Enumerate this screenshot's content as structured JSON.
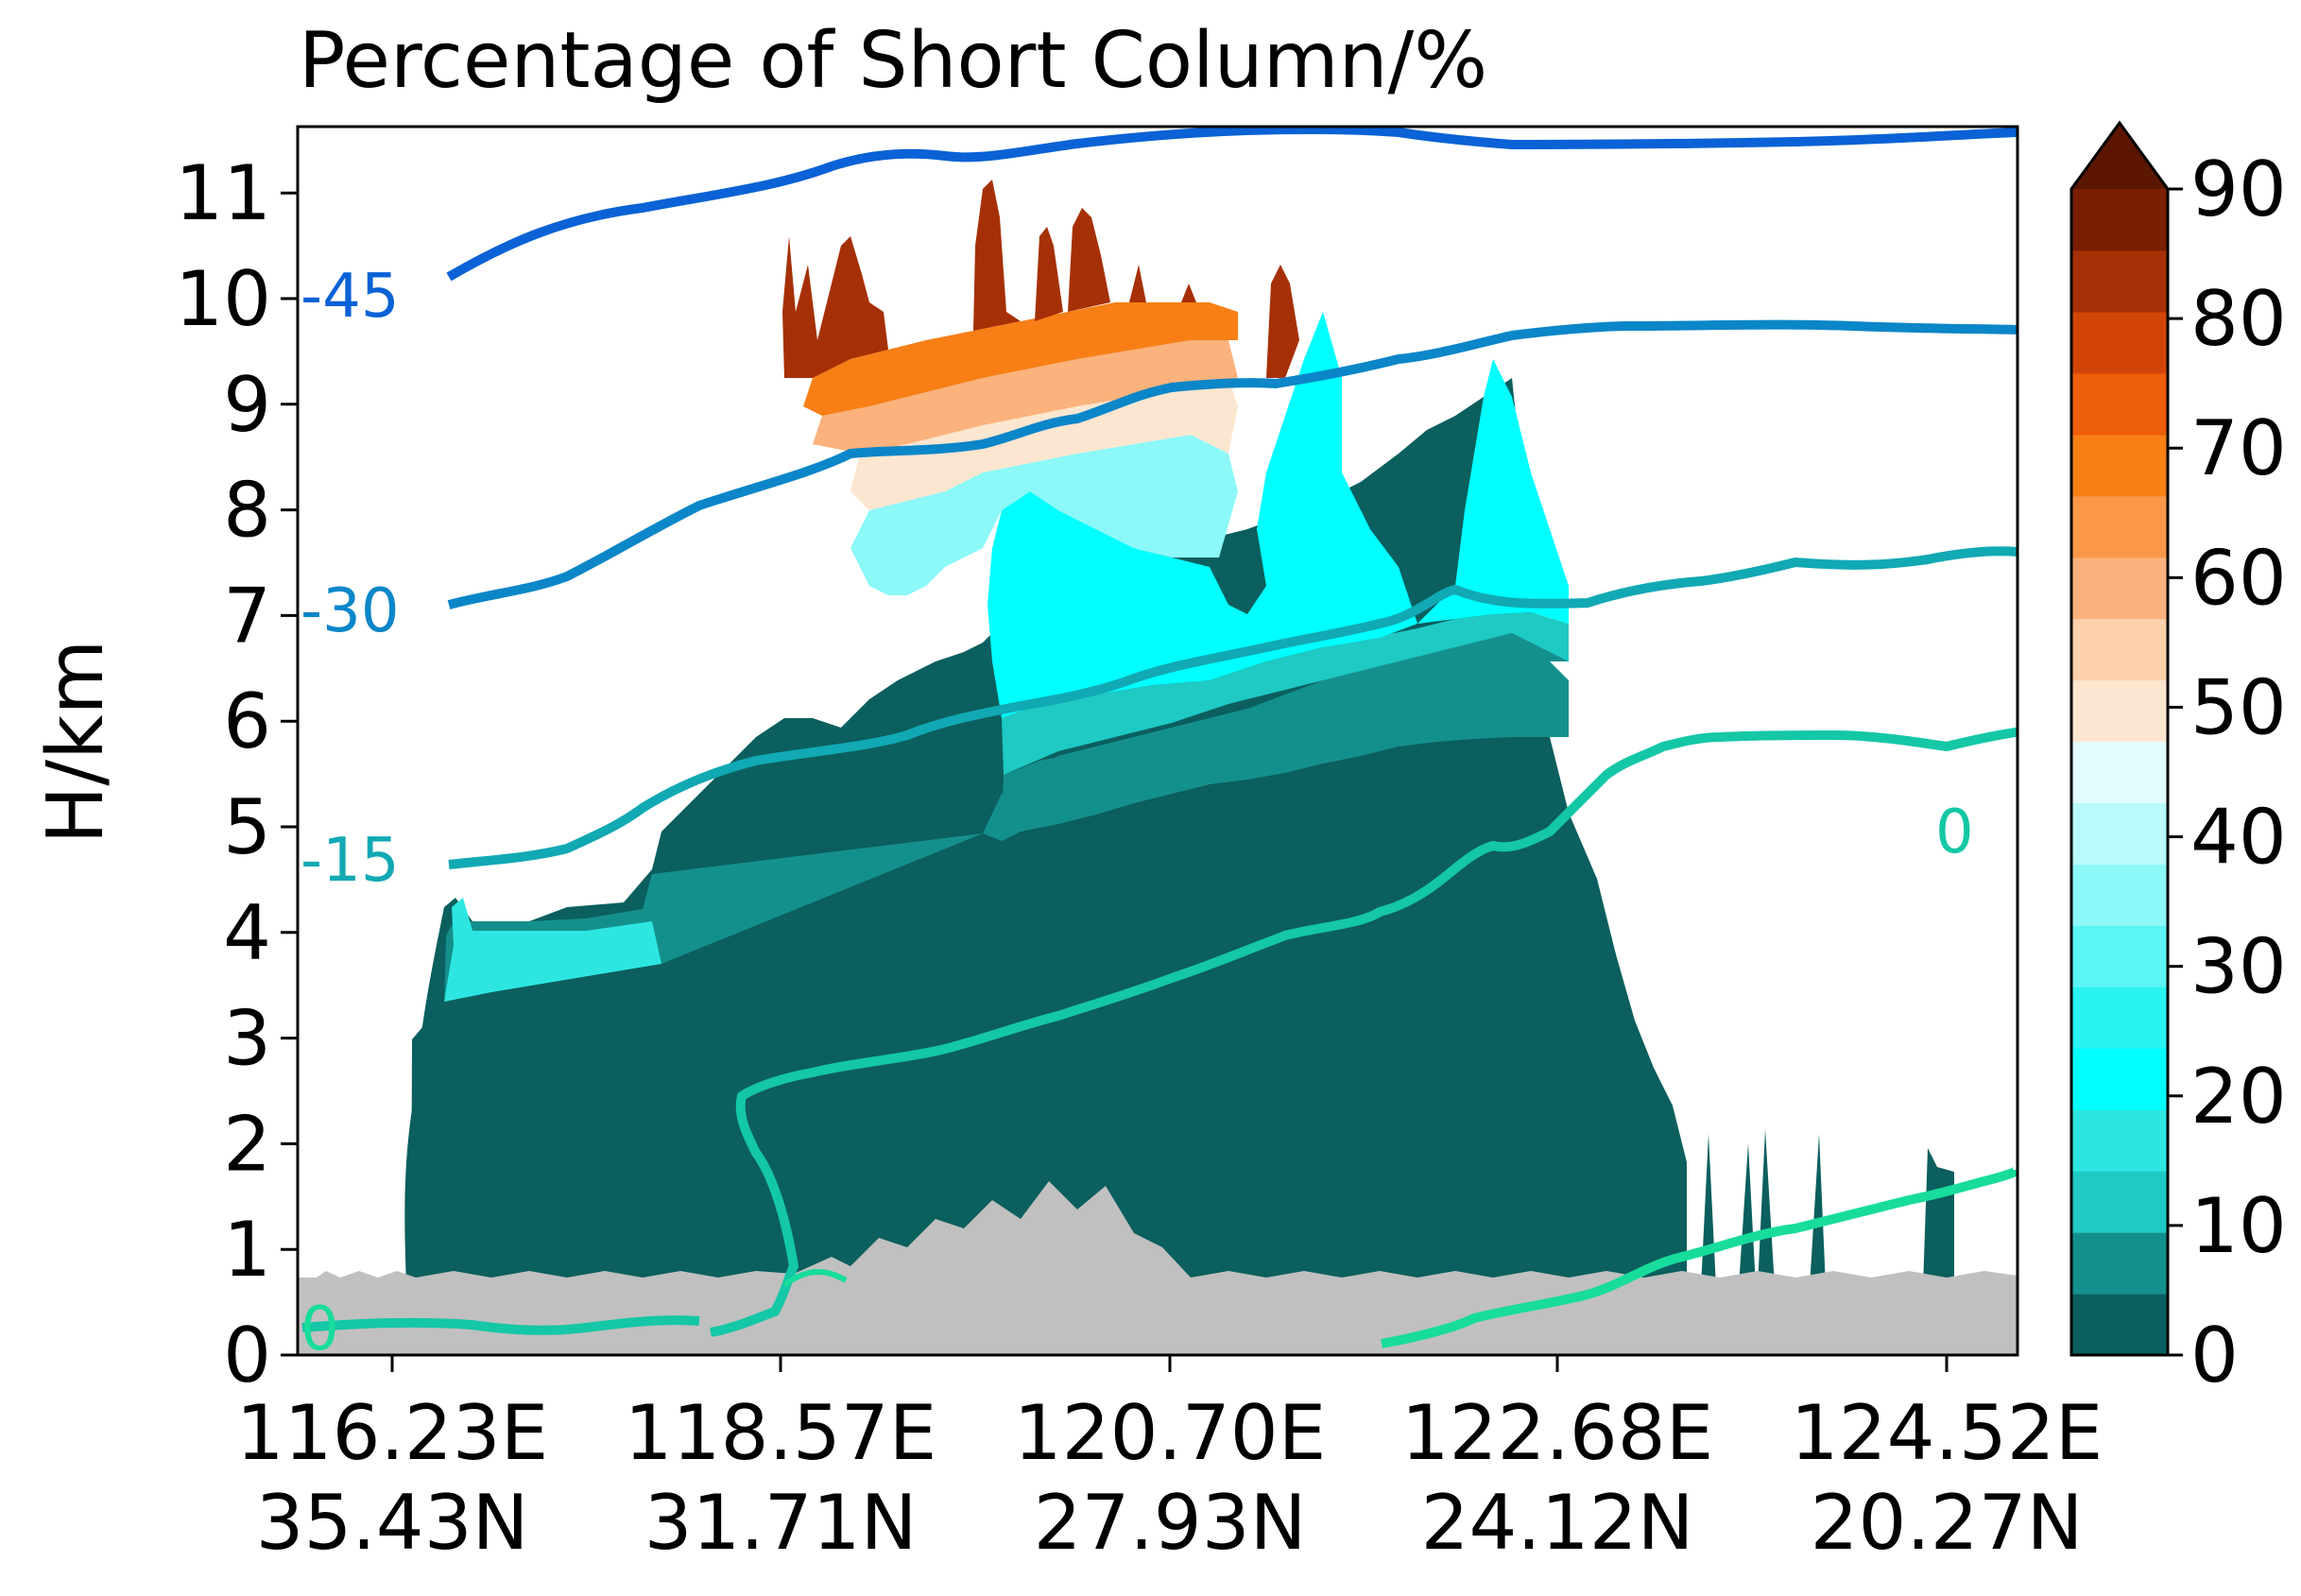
{
  "chart_data": {
    "type": "heatmap",
    "title": "Percentage of Short Column/%",
    "xlabel": "",
    "ylabel": "H/km",
    "ylim": [
      0,
      11.5
    ],
    "yticks": [
      0,
      1,
      2,
      3,
      4,
      5,
      6,
      7,
      8,
      9,
      10,
      11
    ],
    "xticks": [
      {
        "lon": "116.23E",
        "lat": "35.43N"
      },
      {
        "lon": "118.57E",
        "lat": "31.71N"
      },
      {
        "lon": "120.70E",
        "lat": "27.93N"
      },
      {
        "lon": "122.68E",
        "lat": "24.12N"
      },
      {
        "lon": "124.52E",
        "lat": "20.27N"
      }
    ],
    "colorbar": {
      "min": 0,
      "max": 90,
      "extend": "max",
      "ticks": [
        0,
        10,
        20,
        30,
        40,
        50,
        60,
        70,
        80,
        90
      ],
      "colors": [
        "#0b5f5e",
        "#14908c",
        "#1fc9c4",
        "#2ee6e1",
        "#00ffff",
        "#2af3f3",
        "#5af5f5",
        "#8cf8f8",
        "#b9fbfb",
        "#e2fdfd",
        "#fde6d0",
        "#fdd0ac",
        "#fbb27c",
        "#fa9848",
        "#f77f16",
        "#ee5e0b",
        "#d14608",
        "#a63005",
        "#7a1f02"
      ],
      "extend_color": "#5c1600"
    },
    "terrain_color": "#c0c0c0",
    "temperature_contours": [
      {
        "label": "-45",
        "color": "#0a62d6"
      },
      {
        "label": "-30",
        "color": "#0b86c8"
      },
      {
        "label": "-15",
        "color": "#11a9b3"
      },
      {
        "label": "0",
        "color": "#14c7a6"
      },
      {
        "label": "0",
        "color": "#17dc9c"
      }
    ]
  }
}
